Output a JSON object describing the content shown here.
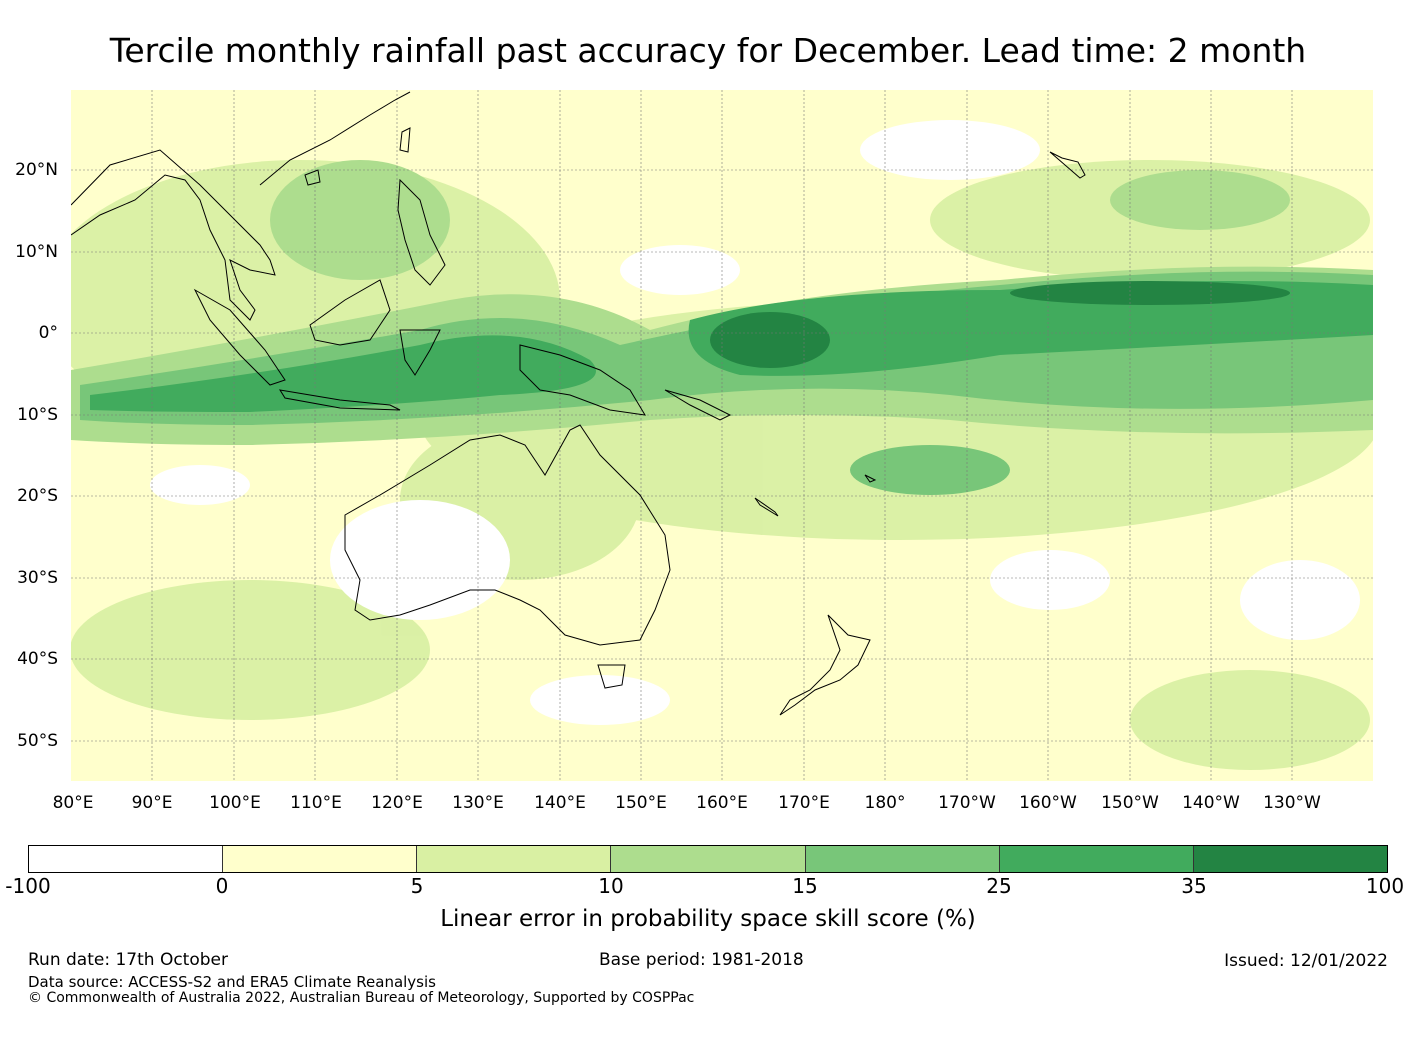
{
  "title": "Tercile monthly rainfall past accuracy for December. Lead time: 2 month",
  "map": {
    "type": "gridded skill score map",
    "region": "Western Pacific and Australia",
    "lon_range": [
      80,
      240
    ],
    "lat_range": [
      -55,
      30
    ],
    "lat_ticks": [
      "20°N",
      "10°N",
      "0°",
      "10°S",
      "20°S",
      "30°S",
      "40°S",
      "50°S"
    ],
    "lon_ticks": [
      "80°E",
      "90°E",
      "100°E",
      "110°E",
      "120°E",
      "130°E",
      "140°E",
      "150°E",
      "160°E",
      "170°E",
      "180°",
      "170°W",
      "160°W",
      "150°W",
      "140°W",
      "130°W"
    ]
  },
  "colorbar": {
    "tick_labels": [
      "-100",
      "0",
      "5",
      "10",
      "15",
      "25",
      "35",
      "100"
    ],
    "colors": [
      "#ffffff",
      "#ffffcc",
      "#d9f0a3",
      "#addd8e",
      "#78c679",
      "#41ab5d",
      "#238443"
    ],
    "label": "Linear error in probability space skill score (%)"
  },
  "footer": {
    "run_date": "Run date: 17th October",
    "base_period": "Base period: 1981-2018",
    "issued": "Issued: 12/01/2022",
    "data_source": "Data source: ACCESS-S2 and ERA5 Climate Reanalysis",
    "copyright": "© Commonwealth of Australia 2022, Australian Bureau of Meteorology, Supported by COSPPac"
  }
}
